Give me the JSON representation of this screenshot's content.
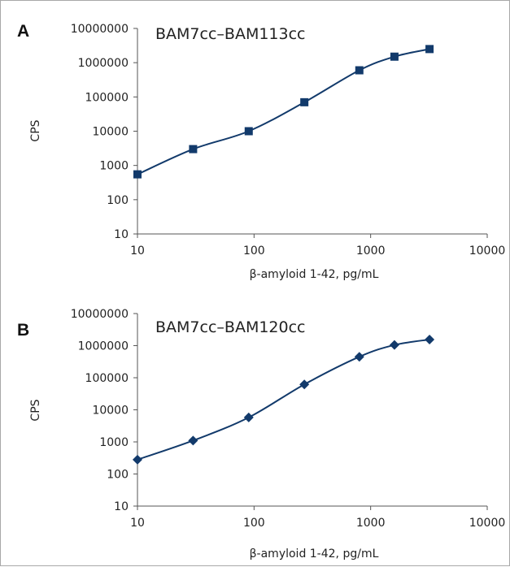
{
  "chart_data": [
    {
      "panel": "A",
      "type": "line",
      "title": "BAM7cc–BAM113cc",
      "xlabel": "β-amyloid 1-42, pg/mL",
      "ylabel": "CPS",
      "x_scale": "log",
      "y_scale": "log",
      "xlim": [
        10,
        10000
      ],
      "ylim": [
        10,
        10000000
      ],
      "x_ticks": [
        "10",
        "100",
        "1000",
        "10000"
      ],
      "y_ticks": [
        "10",
        "100",
        "1000",
        "10000",
        "100000",
        "1000000",
        "10000000"
      ],
      "marker": "square",
      "grid": false,
      "legend": "none",
      "series": [
        {
          "color": "#123a6b",
          "x": [
            10,
            30,
            90,
            270,
            800,
            1600,
            3200
          ],
          "y": [
            550,
            3000,
            10000,
            70000,
            600000,
            1500000,
            2500000
          ]
        }
      ]
    },
    {
      "panel": "B",
      "type": "line",
      "title": "BAM7cc–BAM120cc",
      "xlabel": "β-amyloid 1-42, pg/mL",
      "ylabel": "CPS",
      "x_scale": "log",
      "y_scale": "log",
      "xlim": [
        10,
        10000
      ],
      "ylim": [
        10,
        10000000
      ],
      "x_ticks": [
        "10",
        "100",
        "1000",
        "10000"
      ],
      "y_ticks": [
        "10",
        "100",
        "1000",
        "10000",
        "100000",
        "1000000",
        "10000000"
      ],
      "marker": "diamond",
      "grid": false,
      "legend": "none",
      "series": [
        {
          "color": "#123a6b",
          "x": [
            10,
            30,
            90,
            270,
            800,
            1600,
            3200
          ],
          "y": [
            280,
            1100,
            5800,
            62000,
            450000,
            1050000,
            1550000
          ]
        }
      ]
    }
  ]
}
